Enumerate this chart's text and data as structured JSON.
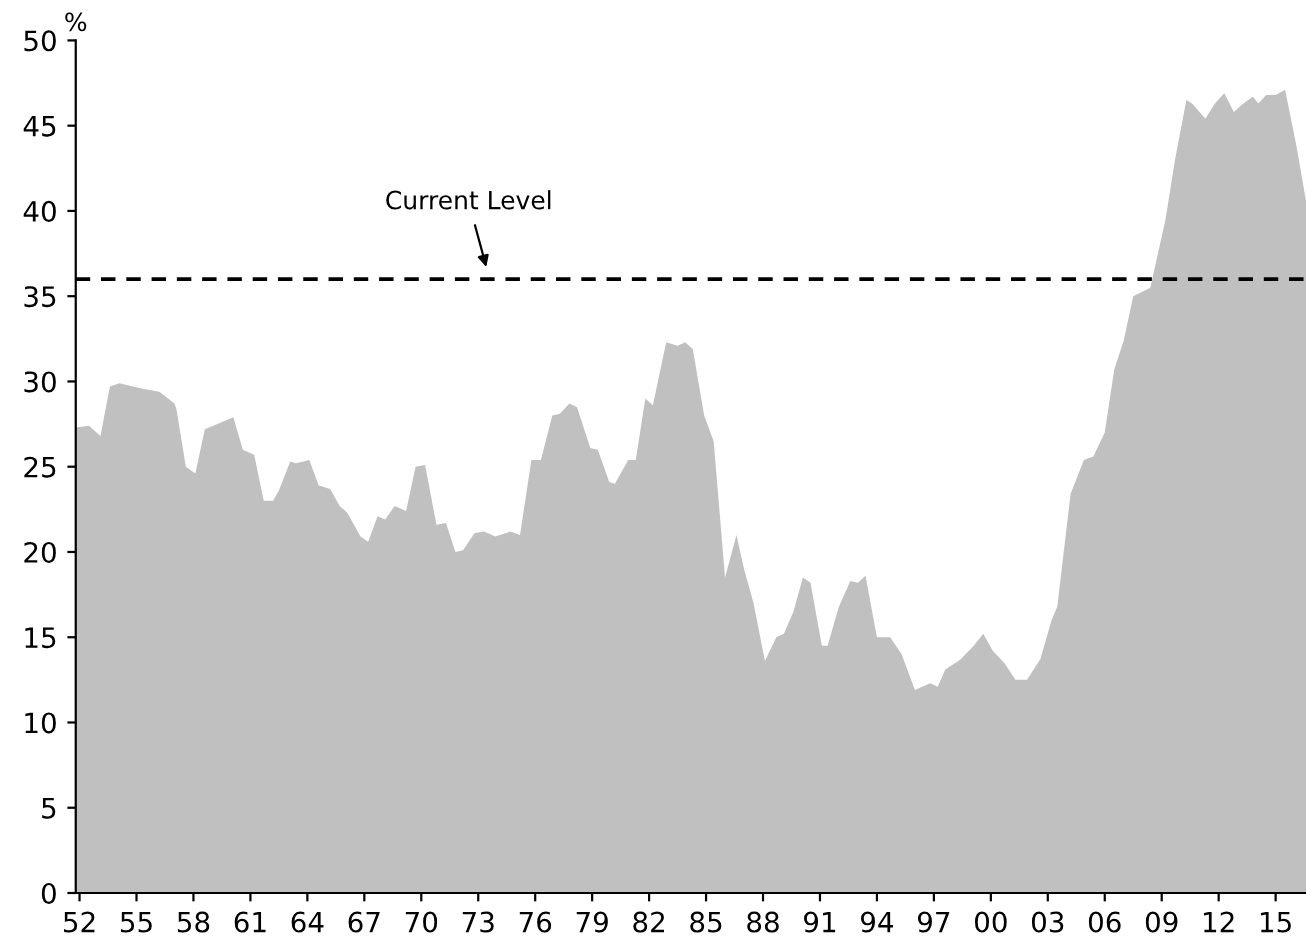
{
  "chart_data": {
    "type": "area",
    "ylabel": "%",
    "x": [
      1951.8,
      1952.5,
      1953.1,
      1953.6,
      1954.1,
      1955.2,
      1956.2,
      1957.0,
      1957.1,
      1957.6,
      1958.1,
      1958.6,
      1960.1,
      1960.6,
      1961.2,
      1961.7,
      1962.2,
      1962.5,
      1963.1,
      1963.4,
      1964.1,
      1964.6,
      1965.2,
      1965.7,
      1966.1,
      1966.8,
      1967.2,
      1967.7,
      1968.1,
      1968.6,
      1969.2,
      1969.7,
      1970.2,
      1970.8,
      1971.3,
      1971.8,
      1972.2,
      1972.8,
      1973.3,
      1973.9,
      1974.7,
      1975.2,
      1975.8,
      1976.3,
      1976.9,
      1977.3,
      1977.8,
      1978.2,
      1978.9,
      1979.3,
      1979.9,
      1980.2,
      1980.9,
      1981.3,
      1981.8,
      1982.2,
      1982.9,
      1983.5,
      1983.9,
      1984.3,
      1984.9,
      1985.4,
      1986.0,
      1986.6,
      1987.0,
      1987.5,
      1988.1,
      1988.7,
      1989.1,
      1989.6,
      1990.1,
      1990.5,
      1991.1,
      1991.4,
      1992.0,
      1992.6,
      1993.0,
      1993.4,
      1994.0,
      1994.7,
      1995.3,
      1996.0,
      1996.8,
      1997.2,
      1997.6,
      1998.4,
      1999.1,
      1999.6,
      2000.1,
      2000.7,
      2001.3,
      2001.9,
      2002.6,
      2003.2,
      2003.5,
      2004.2,
      2004.9,
      2005.4,
      2006.0,
      2006.5,
      2007.0,
      2007.5,
      2008.4,
      2009.2,
      2009.7,
      2010.3,
      2010.6,
      2011.3,
      2011.8,
      2012.3,
      2012.8,
      2013.3,
      2013.8,
      2014.1,
      2014.5,
      2015.0,
      2015.5,
      2016.1,
      2016.6
    ],
    "series": [
      {
        "color": "#c0c0c0",
        "values": [
          27.3,
          27.4,
          26.8,
          29.7,
          29.9,
          29.6,
          29.4,
          28.7,
          28.4,
          25.0,
          24.6,
          27.2,
          27.9,
          26.0,
          25.7,
          23.0,
          23.0,
          23.6,
          25.3,
          25.2,
          25.4,
          23.9,
          23.7,
          22.7,
          22.3,
          20.9,
          20.6,
          22.1,
          21.9,
          22.7,
          22.4,
          25.0,
          25.1,
          21.6,
          21.7,
          20.0,
          20.1,
          21.1,
          21.2,
          20.9,
          21.2,
          21.0,
          25.4,
          25.4,
          28.0,
          28.1,
          28.7,
          28.5,
          26.1,
          26.0,
          24.1,
          24.0,
          25.4,
          25.4,
          29.0,
          28.6,
          32.3,
          32.1,
          32.3,
          31.9,
          28.0,
          26.5,
          18.5,
          21.0,
          19.0,
          17.0,
          13.6,
          15.0,
          15.2,
          16.5,
          18.5,
          18.2,
          14.5,
          14.5,
          16.8,
          18.3,
          18.2,
          18.6,
          15.0,
          15.0,
          14.0,
          11.9,
          12.3,
          12.1,
          13.1,
          13.7,
          14.5,
          15.2,
          14.2,
          13.5,
          12.5,
          12.5,
          13.7,
          16.0,
          16.8,
          23.4,
          25.4,
          25.6,
          27.0,
          30.7,
          32.4,
          35.0,
          35.5,
          39.5,
          43.0,
          46.5,
          46.3,
          45.4,
          46.3,
          46.9,
          45.8,
          46.3,
          46.7,
          46.3,
          46.8,
          46.8,
          47.1,
          43.8,
          40.6
        ]
      }
    ],
    "xlim": [
      1951.8,
      2016.6
    ],
    "xticks": [
      {
        "value": 1952,
        "label": "52"
      },
      {
        "value": 1955,
        "label": "55"
      },
      {
        "value": 1958,
        "label": "58"
      },
      {
        "value": 1961,
        "label": "61"
      },
      {
        "value": 1964,
        "label": "64"
      },
      {
        "value": 1967,
        "label": "67"
      },
      {
        "value": 1970,
        "label": "70"
      },
      {
        "value": 1973,
        "label": "73"
      },
      {
        "value": 1976,
        "label": "76"
      },
      {
        "value": 1979,
        "label": "79"
      },
      {
        "value": 1982,
        "label": "82"
      },
      {
        "value": 1985,
        "label": "85"
      },
      {
        "value": 1988,
        "label": "88"
      },
      {
        "value": 1991,
        "label": "91"
      },
      {
        "value": 1994,
        "label": "94"
      },
      {
        "value": 1997,
        "label": "97"
      },
      {
        "value": 2000,
        "label": "00"
      },
      {
        "value": 2003,
        "label": "03"
      },
      {
        "value": 2006,
        "label": "06"
      },
      {
        "value": 2009,
        "label": "09"
      },
      {
        "value": 2012,
        "label": "12"
      },
      {
        "value": 2015,
        "label": "15"
      }
    ],
    "ylim": [
      0,
      50
    ],
    "yticks": [
      0,
      5,
      10,
      15,
      20,
      25,
      30,
      35,
      40,
      45,
      50
    ],
    "ref_lines": [
      {
        "axis": "y",
        "value": 36,
        "color": "#000000",
        "line_style": "dashed"
      }
    ],
    "annotations": [
      {
        "text": "Current Level",
        "x": 1973.5,
        "y": 36
      }
    ],
    "grid": false,
    "legend": false
  }
}
